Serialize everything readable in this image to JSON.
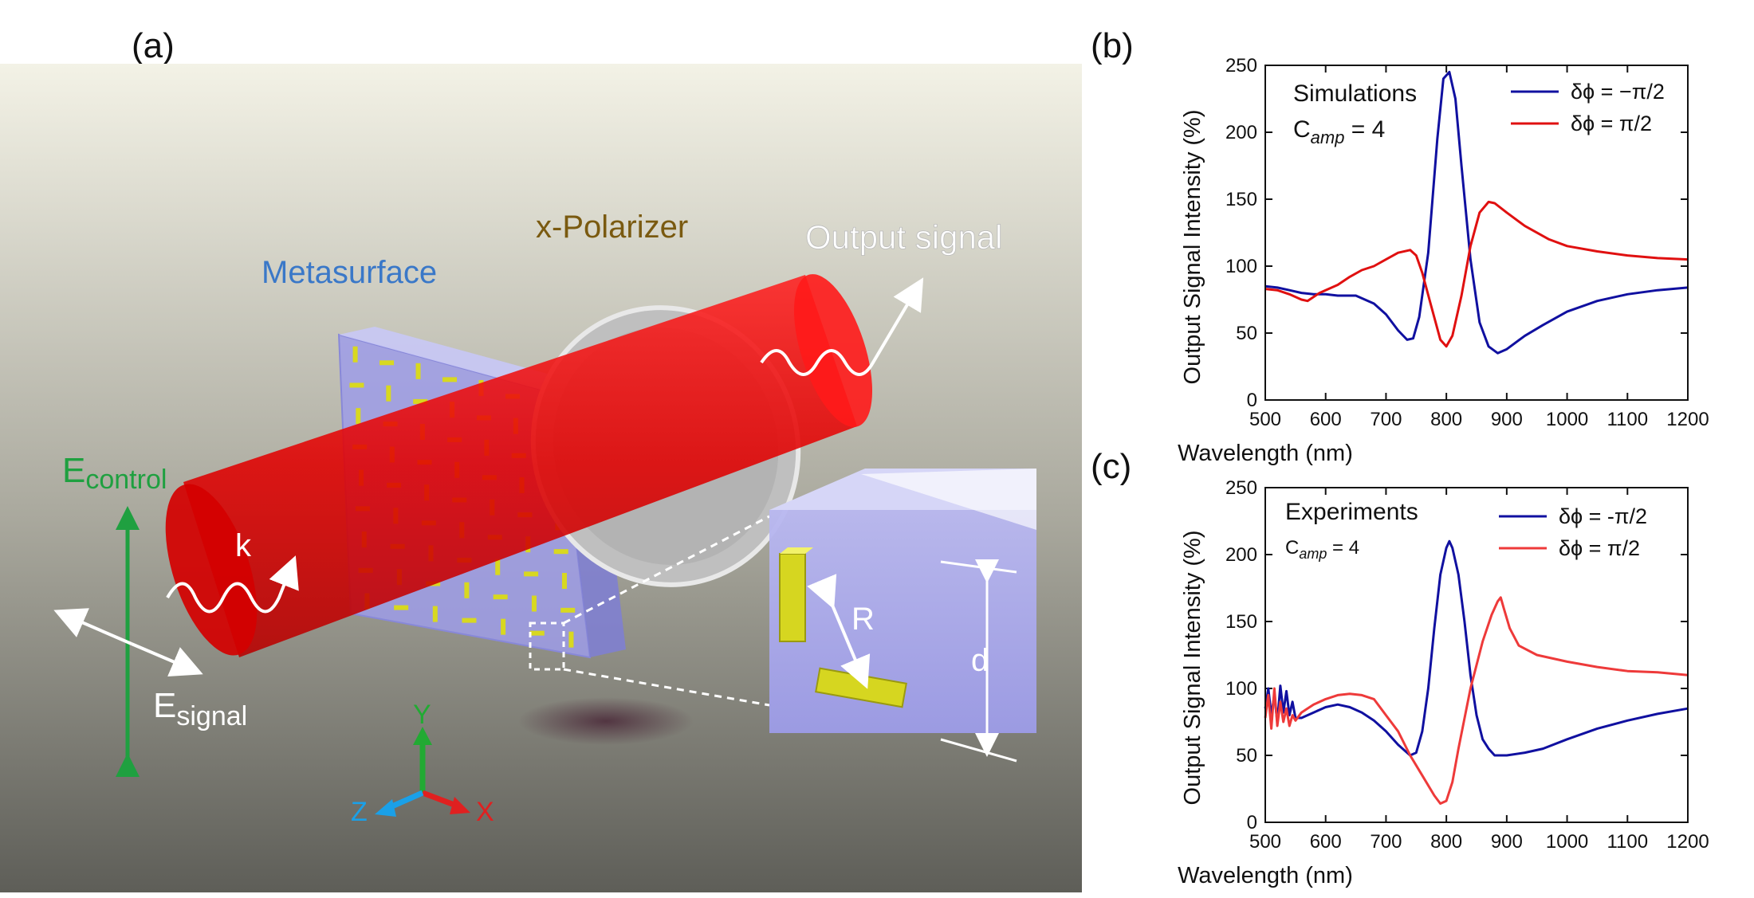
{
  "panels": {
    "a": {
      "label": "(a)",
      "labels": {
        "metasurface": "Metasurface",
        "polarizer": "x-Polarizer",
        "output": "Output signal",
        "k": "k",
        "R": "R",
        "d": "d",
        "e_control_main": "E",
        "e_control_sub": "control",
        "e_signal_main": "E",
        "e_signal_sub": "signal",
        "axis_x": "X",
        "axis_y": "Y",
        "axis_z": "Z"
      },
      "colors": {
        "beam": "#e10000",
        "metasurface_label": "#3a78c8",
        "polarizer_label": "#7a5a10",
        "e_control": "#1fa040",
        "axis_x": "#e02020",
        "axis_y": "#22aa33",
        "axis_z": "#1aa0e8",
        "nanorod": "#d8d820"
      }
    },
    "b": {
      "label": "(b)",
      "annotation_main": "Simulations",
      "annotation_c_main": "C",
      "annotation_c_sub": "amp",
      "annotation_c_rest": " = 4"
    },
    "c": {
      "label": "(c)",
      "annotation_main": "Experiments",
      "annotation_c_main": "C",
      "annotation_c_sub": "amp",
      "annotation_c_rest": " = 4"
    }
  },
  "chart_data": [
    {
      "id": "b",
      "type": "line",
      "title": "",
      "xlabel": "Wavelength (nm)",
      "ylabel": "Output Signal Intensity (%)",
      "xlim": [
        500,
        1200
      ],
      "ylim": [
        0,
        250
      ],
      "xticks": [
        500,
        600,
        700,
        800,
        900,
        1000,
        1100,
        1200
      ],
      "yticks": [
        0,
        50,
        100,
        150,
        200,
        250
      ],
      "legend_position": "top-right",
      "series": [
        {
          "name": "δϕ = −π/2",
          "color": "#1010a0",
          "x": [
            500,
            520,
            540,
            560,
            580,
            600,
            620,
            650,
            680,
            700,
            720,
            735,
            745,
            755,
            770,
            785,
            795,
            805,
            815,
            825,
            840,
            855,
            870,
            885,
            900,
            930,
            960,
            1000,
            1050,
            1100,
            1150,
            1200
          ],
          "y": [
            85,
            84,
            82,
            80,
            79,
            79,
            78,
            78,
            72,
            64,
            52,
            45,
            46,
            62,
            110,
            195,
            240,
            245,
            225,
            175,
            105,
            58,
            40,
            35,
            38,
            48,
            56,
            66,
            74,
            79,
            82,
            84
          ]
        },
        {
          "name": "δϕ = π/2",
          "color": "#e01010",
          "x": [
            500,
            520,
            540,
            560,
            570,
            590,
            600,
            620,
            640,
            660,
            680,
            700,
            720,
            740,
            750,
            760,
            775,
            790,
            800,
            810,
            825,
            840,
            855,
            870,
            880,
            900,
            930,
            970,
            1000,
            1050,
            1100,
            1150,
            1200
          ],
          "y": [
            83,
            82,
            79,
            75,
            74,
            80,
            82,
            86,
            92,
            97,
            100,
            105,
            110,
            112,
            108,
            95,
            70,
            45,
            40,
            48,
            78,
            115,
            140,
            148,
            147,
            140,
            130,
            120,
            115,
            111,
            108,
            106,
            105
          ]
        }
      ]
    },
    {
      "id": "c",
      "type": "line",
      "title": "",
      "xlabel": "Wavelength (nm)",
      "ylabel": "Output Signal Intensity (%)",
      "xlim": [
        500,
        1200
      ],
      "ylim": [
        0,
        250
      ],
      "xticks": [
        500,
        600,
        700,
        800,
        900,
        1000,
        1100,
        1200
      ],
      "yticks": [
        0,
        50,
        100,
        150,
        200,
        250
      ],
      "legend_position": "top-right",
      "series": [
        {
          "name": "δϕ = -π/2",
          "color": "#1010a0",
          "x": [
            500,
            505,
            510,
            515,
            520,
            525,
            530,
            535,
            540,
            545,
            550,
            560,
            580,
            600,
            620,
            640,
            660,
            680,
            700,
            720,
            740,
            750,
            760,
            770,
            780,
            790,
            800,
            805,
            810,
            820,
            830,
            840,
            850,
            860,
            870,
            880,
            900,
            930,
            960,
            1000,
            1050,
            1100,
            1150,
            1200
          ],
          "y": [
            85,
            100,
            80,
            95,
            75,
            102,
            82,
            98,
            80,
            90,
            78,
            78,
            82,
            86,
            88,
            86,
            82,
            76,
            68,
            58,
            50,
            52,
            68,
            100,
            145,
            185,
            205,
            210,
            205,
            185,
            150,
            110,
            80,
            62,
            55,
            50,
            50,
            52,
            55,
            62,
            70,
            76,
            81,
            85
          ]
        },
        {
          "name": "δϕ =  π/2",
          "color": "#ee3a3a",
          "x": [
            500,
            505,
            510,
            515,
            520,
            525,
            530,
            535,
            540,
            545,
            550,
            560,
            580,
            600,
            620,
            640,
            660,
            680,
            700,
            720,
            740,
            760,
            780,
            790,
            800,
            810,
            820,
            840,
            860,
            875,
            885,
            890,
            895,
            905,
            920,
            950,
            1000,
            1050,
            1100,
            1150,
            1200
          ],
          "y": [
            78,
            95,
            70,
            100,
            72,
            90,
            75,
            85,
            72,
            80,
            76,
            82,
            88,
            92,
            95,
            96,
            95,
            92,
            80,
            68,
            50,
            35,
            20,
            14,
            16,
            30,
            55,
            100,
            135,
            155,
            165,
            168,
            160,
            145,
            132,
            125,
            120,
            116,
            113,
            112,
            110
          ]
        }
      ]
    }
  ]
}
